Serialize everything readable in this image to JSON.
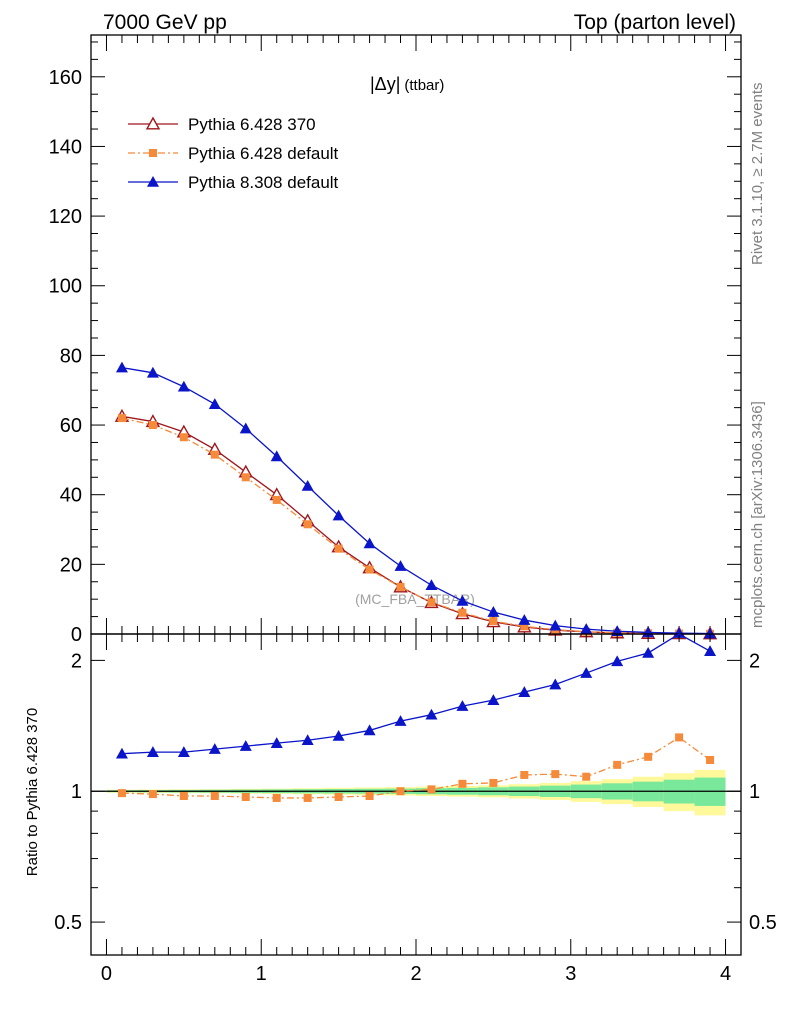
{
  "header": {
    "left": "7000 GeV pp",
    "right": "Top (parton level)"
  },
  "side_labels": {
    "rivet": "Rivet 3.1.10, ≥ 2.7M events",
    "mcplots": "mcplots.cern.ch [arXiv:1306.3436]"
  },
  "observable": {
    "main": "|Δy|",
    "sub": "(ttbar)"
  },
  "analysis_label": "(MC_FBA_TTBAR)",
  "colors": {
    "p6_370": "#a0161c",
    "p6_default": "#f58a3a",
    "p8_default": "#0a14c8",
    "band_inner": "#7ae89a",
    "band_outer": "#fff99b",
    "ref_line": "#000000"
  },
  "chart_data": [
    {
      "type": "line",
      "title": "",
      "xlabel": "",
      "ylabel": "",
      "xlim": [
        -0.1,
        4.1
      ],
      "ylim": [
        0,
        172
      ],
      "x": [
        0.1,
        0.3,
        0.5,
        0.7,
        0.9,
        1.1,
        1.3,
        1.5,
        1.7,
        1.9,
        2.1,
        2.3,
        2.5,
        2.7,
        2.9,
        3.1,
        3.3,
        3.5,
        3.7,
        3.9
      ],
      "x_tick_labels": [],
      "y_ticks": [
        0,
        20,
        40,
        60,
        80,
        100,
        120,
        140,
        160
      ],
      "y_tick_labels": [
        "0",
        "20",
        "40",
        "60",
        "80",
        "100",
        "120",
        "140",
        "160"
      ],
      "legend_position": "top-left",
      "series": [
        {
          "name": "Pythia 6.428 370",
          "color_key": "p6_370",
          "marker": "open-triangle",
          "values": [
            62.5,
            61.0,
            58.0,
            53.0,
            46.5,
            40.0,
            32.5,
            25.0,
            19.0,
            13.5,
            9.0,
            5.8,
            3.5,
            2.0,
            1.1,
            0.6,
            0.3,
            0.15,
            0.08,
            0.04
          ]
        },
        {
          "name": "Pythia 6.428 default",
          "color_key": "p6_default",
          "marker": "square",
          "values": [
            62.0,
            60.0,
            56.5,
            51.5,
            45.0,
            38.5,
            31.5,
            24.5,
            18.5,
            13.5,
            9.1,
            6.1,
            3.7,
            2.2,
            1.25,
            0.65,
            0.35,
            0.19,
            0.11,
            0.05
          ]
        },
        {
          "name": "Pythia 8.308 default",
          "color_key": "p8_default",
          "marker": "filled-triangle",
          "values": [
            76.5,
            75.0,
            71.0,
            66.0,
            59.0,
            51.0,
            42.5,
            34.0,
            26.0,
            19.5,
            14.0,
            9.5,
            6.3,
            4.0,
            2.4,
            1.4,
            0.8,
            0.45,
            0.25,
            0.12
          ]
        }
      ]
    },
    {
      "type": "line",
      "title": "",
      "xlabel": "",
      "ylabel": "Ratio to Pythia 6.428 370",
      "yscale": "log",
      "xlim": [
        -0.1,
        4.1
      ],
      "ylim": [
        0.42,
        2.3
      ],
      "x": [
        0.1,
        0.3,
        0.5,
        0.7,
        0.9,
        1.1,
        1.3,
        1.5,
        1.7,
        1.9,
        2.1,
        2.3,
        2.5,
        2.7,
        2.9,
        3.1,
        3.3,
        3.5,
        3.7,
        3.9
      ],
      "x_ticks": [
        0,
        1,
        2,
        3,
        4
      ],
      "x_tick_labels": [
        "0",
        "1",
        "2",
        "3",
        "4"
      ],
      "y_ticks": [
        0.5,
        1,
        2
      ],
      "y_tick_labels": [
        "0.5",
        "1",
        "2"
      ],
      "reference": 1,
      "series": [
        {
          "name": "Pythia 6.428 default",
          "color_key": "p6_default",
          "marker": "square",
          "values": [
            0.99,
            0.985,
            0.975,
            0.975,
            0.97,
            0.965,
            0.965,
            0.97,
            0.975,
            1.0,
            1.01,
            1.04,
            1.045,
            1.09,
            1.095,
            1.08,
            1.15,
            1.2,
            1.33,
            1.18
          ]
        },
        {
          "name": "Pythia 8.308 default",
          "color_key": "p8_default",
          "marker": "filled-triangle",
          "values": [
            1.22,
            1.23,
            1.23,
            1.25,
            1.27,
            1.29,
            1.31,
            1.34,
            1.38,
            1.45,
            1.5,
            1.57,
            1.62,
            1.69,
            1.76,
            1.87,
            1.99,
            2.08,
            2.35,
            2.1
          ]
        }
      ],
      "band_inner": [
        0.005,
        0.006,
        0.007,
        0.008,
        0.009,
        0.01,
        0.011,
        0.012,
        0.013,
        0.014,
        0.016,
        0.018,
        0.021,
        0.025,
        0.03,
        0.036,
        0.043,
        0.052,
        0.063,
        0.075
      ],
      "band_outer": [
        0.008,
        0.009,
        0.01,
        0.011,
        0.013,
        0.014,
        0.016,
        0.018,
        0.02,
        0.022,
        0.025,
        0.028,
        0.032,
        0.038,
        0.045,
        0.055,
        0.066,
        0.08,
        0.1,
        0.12
      ]
    }
  ]
}
